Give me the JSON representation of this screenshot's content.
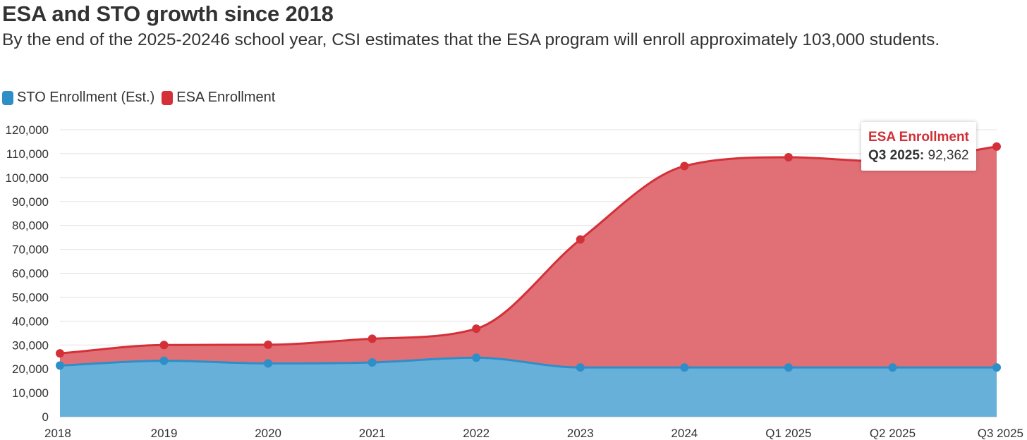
{
  "title": "ESA and STO growth since 2018",
  "subtitle": "By the end of the 2025-20246 school year, CSI estimates that the ESA program will enroll approximately 103,000 students.",
  "legend": [
    {
      "name": "STO Enrollment (Est.)",
      "color": "#2e8fc8"
    },
    {
      "name": "ESA Enrollment",
      "color": "#d43038"
    }
  ],
  "tooltip": {
    "series": "ESA Enrollment",
    "label": "Q3 2025:",
    "value": "92,362"
  },
  "chart_data": {
    "type": "area",
    "stacked": true,
    "categories": [
      "2018",
      "2019",
      "2020",
      "2021",
      "2022",
      "2023",
      "2024",
      "Q1 2025",
      "Q2 2025",
      "Q3 2025"
    ],
    "series": [
      {
        "name": "STO Enrollment (Est.)",
        "color": "#2e8fc8",
        "fill": "#66b0d9",
        "values": [
          21400,
          23400,
          22300,
          22700,
          24700,
          20600,
          20600,
          20600,
          20600,
          20600
        ]
      },
      {
        "name": "ESA Enrollment",
        "color": "#d43038",
        "fill": "#e07075",
        "values": [
          5100,
          6600,
          7800,
          9900,
          12100,
          53500,
          84200,
          87900,
          86000,
          92362
        ]
      }
    ],
    "ylim": [
      0,
      120000
    ],
    "yticks": [
      0,
      10000,
      20000,
      30000,
      40000,
      50000,
      60000,
      70000,
      80000,
      90000,
      100000,
      110000,
      120000
    ],
    "ytick_labels": [
      "0",
      "10,000",
      "20,000",
      "30,000",
      "40,000",
      "50,000",
      "60,000",
      "70,000",
      "80,000",
      "90,000",
      "100,000",
      "110,000",
      "120,000"
    ],
    "grid": true,
    "legend_position": "top-left"
  }
}
